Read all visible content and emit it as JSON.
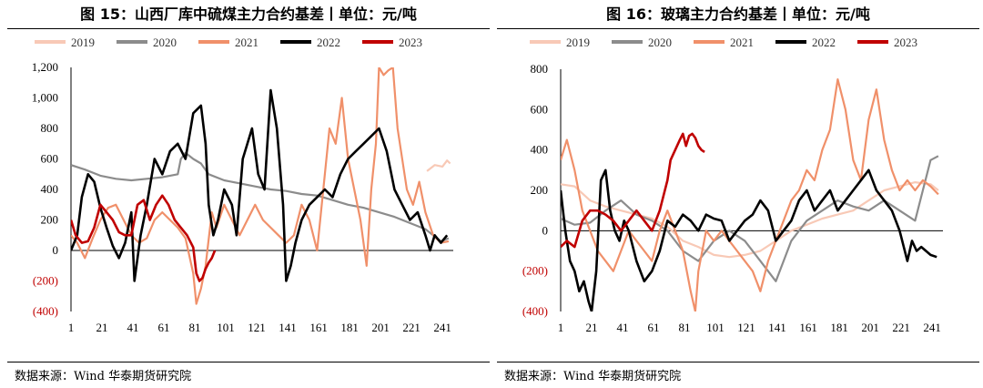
{
  "source_label": "数据来源：Wind 华泰期货研究院",
  "colors": {
    "2019": "#f8c9b6",
    "2020": "#8c8c8c",
    "2021": "#f0906a",
    "2022": "#000000",
    "2023": "#c00000",
    "negative_label": "#c00000"
  },
  "chart_data": [
    {
      "type": "line",
      "title": "图 15：山西厂库中硫煤主力合约基差丨单位：元/吨",
      "x_ticks": [
        "1",
        "21",
        "41",
        "61",
        "81",
        "101",
        "121",
        "141",
        "161",
        "181",
        "201",
        "221",
        "241"
      ],
      "xlim": [
        1,
        248
      ],
      "ylim": [
        -400,
        1200
      ],
      "y_ticks": [
        -400,
        -200,
        0,
        200,
        400,
        600,
        800,
        1000,
        1200
      ],
      "y_tick_labels": [
        "(400)",
        "(200)",
        "0",
        "200",
        "400",
        "600",
        "800",
        "1,000",
        "1,200"
      ],
      "legend": [
        "2019",
        "2020",
        "2021",
        "2022",
        "2023"
      ],
      "series": [
        {
          "name": "2019",
          "x": [
            231,
            236,
            241,
            244,
            246
          ],
          "y": [
            520,
            560,
            550,
            590,
            570
          ]
        },
        {
          "name": "2020",
          "x": [
            1,
            10,
            20,
            30,
            40,
            50,
            60,
            70,
            72,
            75,
            80,
            85,
            90,
            100,
            110,
            120,
            130,
            140,
            150,
            160,
            170,
            180,
            190,
            200,
            210,
            220,
            230,
            235,
            240,
            245
          ],
          "y": [
            560,
            530,
            490,
            470,
            460,
            470,
            480,
            500,
            600,
            640,
            600,
            570,
            500,
            460,
            440,
            420,
            400,
            390,
            370,
            360,
            330,
            300,
            280,
            250,
            220,
            180,
            140,
            100,
            60,
            80
          ]
        },
        {
          "name": "2021",
          "x": [
            1,
            5,
            10,
            15,
            20,
            25,
            30,
            35,
            40,
            45,
            50,
            55,
            60,
            65,
            70,
            75,
            80,
            82,
            85,
            88,
            92,
            95,
            100,
            105,
            110,
            115,
            120,
            125,
            130,
            135,
            140,
            145,
            150,
            155,
            160,
            165,
            168,
            172,
            176,
            180,
            184,
            188,
            192,
            195,
            198,
            200,
            203,
            206,
            209,
            212,
            215,
            218,
            222,
            226,
            230,
            235,
            240,
            245
          ],
          "y": [
            100,
            50,
            -50,
            80,
            200,
            280,
            300,
            200,
            100,
            50,
            80,
            200,
            250,
            200,
            150,
            80,
            -150,
            -350,
            -250,
            -100,
            250,
            150,
            300,
            200,
            100,
            200,
            300,
            200,
            150,
            100,
            50,
            100,
            300,
            200,
            0,
            500,
            800,
            700,
            1000,
            600,
            400,
            200,
            -100,
            400,
            700,
            1200,
            1150,
            1180,
            1200,
            800,
            600,
            400,
            300,
            450,
            250,
            100,
            50,
            60
          ]
        },
        {
          "name": "2022",
          "x": [
            1,
            5,
            8,
            12,
            16,
            20,
            24,
            28,
            32,
            36,
            40,
            42,
            46,
            50,
            55,
            60,
            65,
            70,
            75,
            80,
            85,
            88,
            90,
            93,
            96,
            100,
            105,
            108,
            112,
            115,
            118,
            122,
            126,
            130,
            134,
            138,
            140,
            143,
            146,
            150,
            155,
            160,
            165,
            170,
            175,
            180,
            185,
            190,
            195,
            200,
            205,
            210,
            215,
            220,
            225,
            230,
            233,
            236,
            240,
            244
          ],
          "y": [
            0,
            100,
            350,
            500,
            450,
            280,
            150,
            30,
            -50,
            50,
            250,
            -200,
            100,
            300,
            600,
            500,
            650,
            700,
            600,
            900,
            950,
            700,
            300,
            100,
            200,
            400,
            300,
            100,
            600,
            700,
            800,
            500,
            400,
            1050,
            800,
            300,
            -200,
            -100,
            50,
            200,
            300,
            350,
            400,
            350,
            500,
            600,
            650,
            700,
            750,
            800,
            650,
            400,
            300,
            200,
            250,
            100,
            0,
            100,
            50,
            100
          ]
        },
        {
          "name": "2023",
          "x": [
            1,
            4,
            8,
            12,
            16,
            20,
            24,
            28,
            32,
            36,
            40,
            44,
            48,
            52,
            56,
            60,
            64,
            68,
            72,
            76,
            80,
            82,
            84,
            86,
            88,
            90,
            92,
            94
          ],
          "y": [
            200,
            100,
            50,
            60,
            150,
            300,
            250,
            200,
            120,
            100,
            100,
            300,
            330,
            200,
            300,
            360,
            300,
            200,
            150,
            100,
            20,
            -150,
            -200,
            -180,
            -120,
            -80,
            -50,
            0
          ]
        }
      ]
    },
    {
      "type": "line",
      "title": "图 16：玻璃主力合约基差丨单位：元/吨",
      "x_ticks": [
        "1",
        "21",
        "41",
        "61",
        "81",
        "101",
        "121",
        "141",
        "161",
        "181",
        "201",
        "221",
        "241"
      ],
      "xlim": [
        1,
        248
      ],
      "ylim": [
        -400,
        800
      ],
      "y_ticks": [
        -400,
        -200,
        0,
        200,
        400,
        600,
        800
      ],
      "y_tick_labels": [
        "(400)",
        "(200)",
        "0",
        "200",
        "400",
        "600",
        "800"
      ],
      "legend": [
        "2019",
        "2020",
        "2021",
        "2022",
        "2023"
      ],
      "series": [
        {
          "name": "2019",
          "x": [
            1,
            10,
            20,
            30,
            40,
            50,
            60,
            70,
            80,
            90,
            100,
            110,
            120,
            130,
            140,
            150,
            160,
            170,
            180,
            190,
            200,
            210,
            220,
            230,
            240,
            245
          ],
          "y": [
            230,
            220,
            150,
            120,
            100,
            80,
            60,
            20,
            -50,
            -80,
            -120,
            -130,
            -120,
            -100,
            -50,
            0,
            30,
            60,
            80,
            100,
            150,
            200,
            220,
            240,
            230,
            200
          ]
        },
        {
          "name": "2020",
          "x": [
            1,
            10,
            20,
            30,
            40,
            50,
            60,
            70,
            80,
            90,
            100,
            110,
            120,
            130,
            135,
            140,
            145,
            150,
            160,
            170,
            180,
            190,
            200,
            210,
            220,
            230,
            235,
            240,
            245
          ],
          "y": [
            60,
            30,
            40,
            100,
            150,
            80,
            50,
            0,
            -100,
            -150,
            -50,
            0,
            -50,
            -150,
            -200,
            -250,
            -150,
            -50,
            50,
            100,
            150,
            120,
            100,
            150,
            100,
            50,
            200,
            350,
            370
          ]
        },
        {
          "name": "2021",
          "x": [
            1,
            5,
            10,
            15,
            20,
            25,
            30,
            35,
            40,
            45,
            50,
            55,
            60,
            65,
            70,
            75,
            80,
            85,
            88,
            90,
            95,
            100,
            105,
            110,
            115,
            120,
            125,
            130,
            135,
            140,
            145,
            150,
            155,
            160,
            165,
            170,
            175,
            180,
            185,
            190,
            195,
            200,
            205,
            210,
            215,
            220,
            225,
            230,
            235,
            240,
            245
          ],
          "y": [
            350,
            450,
            300,
            100,
            0,
            -100,
            -150,
            -200,
            -100,
            0,
            -50,
            -100,
            -150,
            0,
            100,
            0,
            -100,
            -300,
            -400,
            -200,
            0,
            -50,
            0,
            -50,
            -100,
            -150,
            -200,
            -300,
            -150,
            -50,
            50,
            150,
            200,
            300,
            250,
            400,
            500,
            750,
            600,
            350,
            250,
            550,
            700,
            450,
            300,
            200,
            250,
            200,
            250,
            220,
            180
          ]
        },
        {
          "name": "2022",
          "x": [
            1,
            4,
            7,
            10,
            13,
            16,
            19,
            21,
            24,
            27,
            30,
            33,
            36,
            39,
            42,
            45,
            50,
            55,
            60,
            65,
            70,
            75,
            80,
            85,
            90,
            95,
            100,
            105,
            110,
            115,
            120,
            125,
            130,
            135,
            140,
            145,
            150,
            155,
            160,
            165,
            170,
            175,
            180,
            185,
            190,
            195,
            200,
            205,
            210,
            215,
            220,
            225,
            228,
            231,
            234,
            237,
            240,
            244
          ],
          "y": [
            200,
            0,
            -150,
            -200,
            -300,
            -250,
            -350,
            -400,
            -200,
            250,
            300,
            100,
            0,
            -50,
            50,
            0,
            -150,
            -250,
            -200,
            -100,
            50,
            20,
            80,
            50,
            0,
            80,
            60,
            50,
            -50,
            0,
            50,
            80,
            150,
            100,
            -50,
            0,
            50,
            150,
            200,
            100,
            150,
            200,
            100,
            150,
            200,
            250,
            300,
            200,
            150,
            100,
            0,
            -150,
            -50,
            -100,
            -80,
            -100,
            -120,
            -130
          ]
        },
        {
          "name": "2023",
          "x": [
            1,
            5,
            10,
            15,
            20,
            25,
            30,
            35,
            40,
            45,
            50,
            55,
            60,
            65,
            70,
            72,
            75,
            78,
            80,
            82,
            84,
            86,
            88,
            90,
            92,
            94
          ],
          "y": [
            -80,
            -50,
            -80,
            50,
            100,
            100,
            80,
            50,
            0,
            50,
            100,
            50,
            0,
            100,
            250,
            350,
            400,
            450,
            480,
            420,
            470,
            480,
            460,
            420,
            400,
            390
          ]
        }
      ]
    }
  ]
}
